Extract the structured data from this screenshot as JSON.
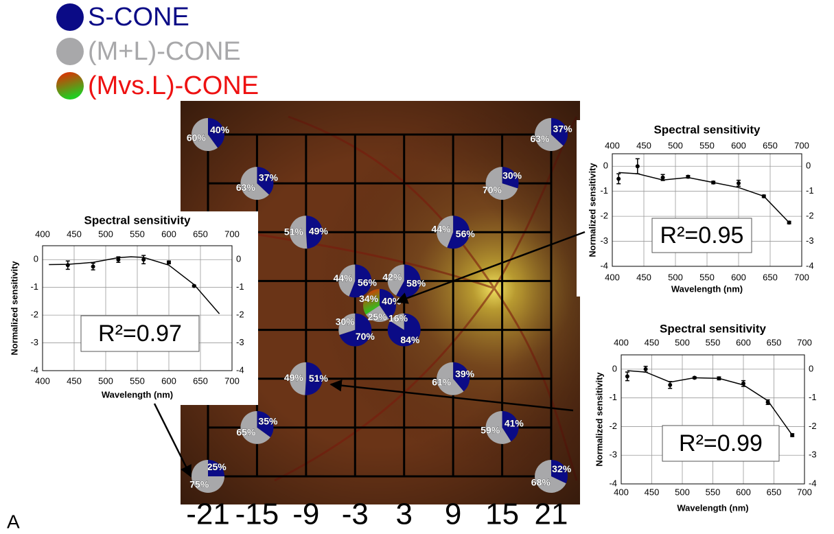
{
  "panel_label": "A",
  "chart_data": [
    {
      "type": "pie-grid",
      "series": [
        {
          "name": "S-CONE",
          "color": "#0b0b86"
        },
        {
          "name": "(M+L)-CONE",
          "color": "#a8a8aa"
        },
        {
          "name": "(Mvs.L)-CONE",
          "color": "#ee1111",
          "colors": [
            "#ee2200",
            "#22cc22"
          ]
        }
      ],
      "xlim": [
        -21,
        21
      ],
      "ylim": [
        -21,
        21
      ],
      "xticks": [
        -21,
        -15,
        -9,
        -3,
        3,
        9,
        15,
        21
      ],
      "grid": true,
      "pies": [
        {
          "x": -21,
          "y": 21,
          "values": [
            40,
            60
          ],
          "value_labels": [
            "40%",
            "60%"
          ]
        },
        {
          "x": 21,
          "y": 21,
          "values": [
            37,
            63
          ],
          "value_labels": [
            "37%",
            "63%"
          ]
        },
        {
          "x": -15,
          "y": 15,
          "values": [
            37,
            63
          ],
          "value_labels": [
            "37%",
            "63%"
          ]
        },
        {
          "x": 15,
          "y": 15,
          "values": [
            30,
            70
          ],
          "value_labels": [
            "30%",
            "70%"
          ]
        },
        {
          "x": -9,
          "y": 9,
          "values": [
            49,
            51
          ],
          "value_labels": [
            "49%",
            "51%"
          ]
        },
        {
          "x": 9,
          "y": 9,
          "values": [
            56,
            44
          ],
          "value_labels": [
            "56%",
            "44%"
          ]
        },
        {
          "x": -3,
          "y": 3,
          "values": [
            56,
            44
          ],
          "value_labels": [
            "56%",
            "44%"
          ]
        },
        {
          "x": 3,
          "y": 3,
          "values": [
            58,
            42
          ],
          "value_labels": [
            "58%",
            "42%"
          ]
        },
        {
          "x": 0,
          "y": 0,
          "values": [
            40,
            25,
            34
          ],
          "value_labels": [
            "40%",
            "25%",
            "34%"
          ]
        },
        {
          "x": -3,
          "y": -3,
          "values": [
            70,
            30
          ],
          "value_labels": [
            "70%",
            "30%"
          ]
        },
        {
          "x": 3,
          "y": -3,
          "values": [
            84,
            16
          ],
          "value_labels": [
            "84%",
            "16%"
          ]
        },
        {
          "x": -9,
          "y": -9,
          "values": [
            51,
            49
          ],
          "value_labels": [
            "51%",
            "49%"
          ]
        },
        {
          "x": 9,
          "y": -9,
          "values": [
            39,
            61
          ],
          "value_labels": [
            "39%",
            "61%"
          ]
        },
        {
          "x": -15,
          "y": -15,
          "values": [
            35,
            65
          ],
          "value_labels": [
            "35%",
            "65%"
          ]
        },
        {
          "x": 15,
          "y": -15,
          "values": [
            41,
            59
          ],
          "value_labels": [
            "41%",
            "59%"
          ]
        },
        {
          "x": -21,
          "y": -21,
          "values": [
            25,
            75
          ],
          "value_labels": [
            "25%",
            "75%"
          ]
        },
        {
          "x": 21,
          "y": -21,
          "values": [
            32,
            68
          ],
          "value_labels": [
            "32%",
            "68%"
          ]
        }
      ]
    },
    {
      "type": "line",
      "title": "Spectral sensitivity",
      "x_label": "Wavelength (nm)",
      "y_label": "Normalized sensitivity",
      "xlim": [
        400,
        700
      ],
      "ylim": [
        -4,
        0.5
      ],
      "xticks": [
        400,
        450,
        500,
        550,
        600,
        650,
        700
      ],
      "yticks": [
        -4,
        -3,
        -2,
        -1,
        0
      ],
      "grid": true,
      "annotation": "R²=0.97",
      "points": {
        "x": [
          440,
          480,
          520,
          560,
          600,
          640
        ],
        "values": [
          -0.2,
          -0.25,
          0.0,
          0.0,
          -0.1,
          -0.95
        ],
        "errors": [
          0.15,
          0.12,
          0.1,
          0.15,
          0.05,
          0.03
        ]
      },
      "fit": {
        "x": [
          410,
          440,
          480,
          520,
          540,
          560,
          600,
          640,
          680
        ],
        "values": [
          -0.18,
          -0.17,
          -0.1,
          0.07,
          0.1,
          0.08,
          -0.2,
          -0.9,
          -1.95
        ]
      }
    },
    {
      "type": "line",
      "title": "Spectral sensitivity",
      "x_label": "Wavelength (nm)",
      "y_label": "Normalized sensitivity",
      "xlim": [
        400,
        700
      ],
      "ylim": [
        -4,
        0.5
      ],
      "xticks": [
        400,
        450,
        500,
        550,
        600,
        650,
        700
      ],
      "yticks": [
        -4,
        -3,
        -2,
        -1,
        0
      ],
      "grid": true,
      "annotation": "R²=0.95",
      "points": {
        "x": [
          410,
          440,
          480,
          520,
          560,
          600,
          640,
          680
        ],
        "values": [
          -0.5,
          0.0,
          -0.45,
          -0.42,
          -0.65,
          -0.68,
          -1.2,
          -2.25
        ],
        "errors": [
          0.2,
          0.3,
          0.12,
          0.05,
          0.05,
          0.12,
          0.05,
          0.05
        ]
      },
      "fit": {
        "x": [
          410,
          440,
          480,
          520,
          560,
          600,
          640,
          680
        ],
        "values": [
          -0.25,
          -0.3,
          -0.55,
          -0.45,
          -0.65,
          -0.85,
          -1.2,
          -2.25
        ]
      }
    },
    {
      "type": "line",
      "title": "Spectral sensitivity",
      "x_label": "Wavelength (nm)",
      "y_label": "Normalized sensitivity",
      "xlim": [
        400,
        700
      ],
      "ylim": [
        -4,
        0.5
      ],
      "xticks": [
        400,
        450,
        500,
        550,
        600,
        650,
        700
      ],
      "yticks": [
        -4,
        -3,
        -2,
        -1,
        0
      ],
      "grid": true,
      "annotation": "R²=0.99",
      "points": {
        "x": [
          410,
          440,
          480,
          520,
          560,
          600,
          640,
          680
        ],
        "values": [
          -0.25,
          0.0,
          -0.55,
          -0.3,
          -0.32,
          -0.5,
          -1.15,
          -2.3
        ],
        "errors": [
          0.15,
          0.1,
          0.12,
          0.03,
          0.05,
          0.1,
          0.08,
          0.05
        ]
      },
      "fit": {
        "x": [
          410,
          440,
          480,
          520,
          560,
          600,
          640,
          680
        ],
        "values": [
          -0.05,
          -0.1,
          -0.45,
          -0.3,
          -0.32,
          -0.55,
          -1.1,
          -2.3
        ]
      }
    }
  ]
}
